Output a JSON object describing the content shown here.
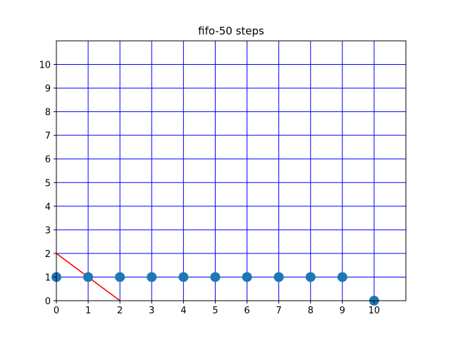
{
  "chart_data": {
    "type": "scatter",
    "title": "fifo-50 steps",
    "xlabel": "",
    "ylabel": "",
    "xlim": [
      0,
      11
    ],
    "ylim": [
      0,
      11
    ],
    "xticks": [
      0,
      1,
      2,
      3,
      4,
      5,
      6,
      7,
      8,
      9,
      10
    ],
    "yticks": [
      0,
      1,
      2,
      3,
      4,
      5,
      6,
      7,
      8,
      9,
      10
    ],
    "grid": true,
    "grid_color": "#0000ff",
    "series": [
      {
        "kind": "scatter",
        "color": "#1f77b4",
        "points": [
          {
            "x": 0,
            "y": 1
          },
          {
            "x": 1,
            "y": 1
          },
          {
            "x": 2,
            "y": 1
          },
          {
            "x": 3,
            "y": 1
          },
          {
            "x": 4,
            "y": 1
          },
          {
            "x": 5,
            "y": 1
          },
          {
            "x": 6,
            "y": 1
          },
          {
            "x": 7,
            "y": 1
          },
          {
            "x": 8,
            "y": 1
          },
          {
            "x": 9,
            "y": 1
          },
          {
            "x": 10,
            "y": 0
          }
        ]
      },
      {
        "kind": "line",
        "color": "#ff0000",
        "points": [
          {
            "x": 0,
            "y": 2
          },
          {
            "x": 2,
            "y": 0
          }
        ]
      }
    ]
  }
}
